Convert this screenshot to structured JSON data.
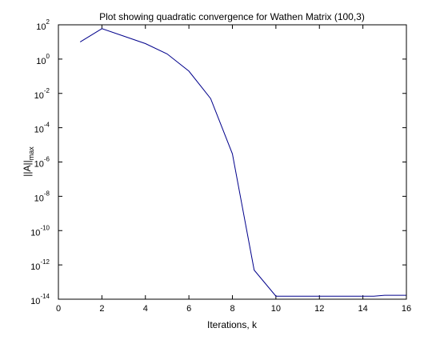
{
  "chart_data": {
    "type": "line",
    "title": "Plot showing quadratic convergence for Wathen Matrix (100,3)",
    "xlabel": "Iterations, k",
    "ylabel": "||A||",
    "ylabel_subscript": "max",
    "xlim": [
      0,
      16
    ],
    "ylim_exp": [
      -14,
      2
    ],
    "yscale": "log",
    "grid": false,
    "line_color": "#00008b",
    "x_ticks": [
      "0",
      "2",
      "4",
      "6",
      "8",
      "10",
      "12",
      "14",
      "16"
    ],
    "y_tick_base": "10",
    "y_tick_exponents": [
      "2",
      "0",
      "-2",
      "-4",
      "-6",
      "-8",
      "-10",
      "-12",
      "-14"
    ],
    "series": [
      {
        "x": [
          1,
          2,
          3,
          4,
          5,
          6,
          7,
          8,
          9,
          10,
          11,
          12,
          13,
          14,
          14.5,
          15,
          16
        ],
        "y": [
          10,
          60,
          22,
          8,
          2,
          0.2,
          0.005,
          3e-06,
          5e-13,
          1.5e-14,
          1.5e-14,
          1.5e-14,
          1.5e-14,
          1.5e-14,
          1.5e-14,
          1.7e-14,
          1.7e-14
        ]
      }
    ]
  }
}
